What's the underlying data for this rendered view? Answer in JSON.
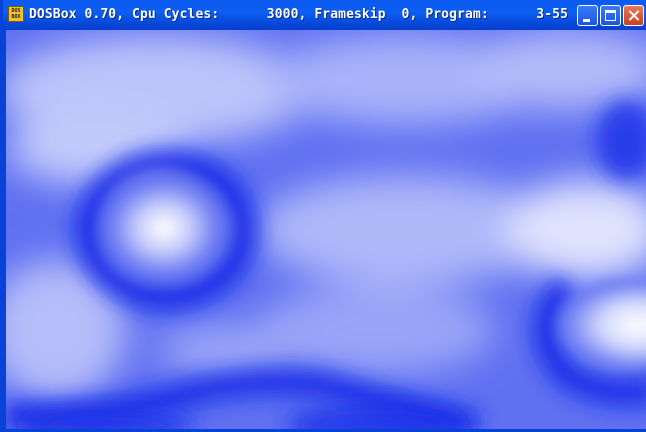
{
  "window": {
    "title": "DOSBox 0.70, Cpu Cycles:      3000, Frameskip  0, Program:      3-55",
    "app_icon_text": "DOS BOX",
    "controls": [
      "minimize-icon",
      "maximize-icon",
      "close-icon"
    ]
  },
  "screen": {
    "content": "blue cloud plasma render",
    "palette": [
      "#0a1fe0",
      "#4f60f0",
      "#9aa6f8",
      "#ffffff"
    ]
  }
}
